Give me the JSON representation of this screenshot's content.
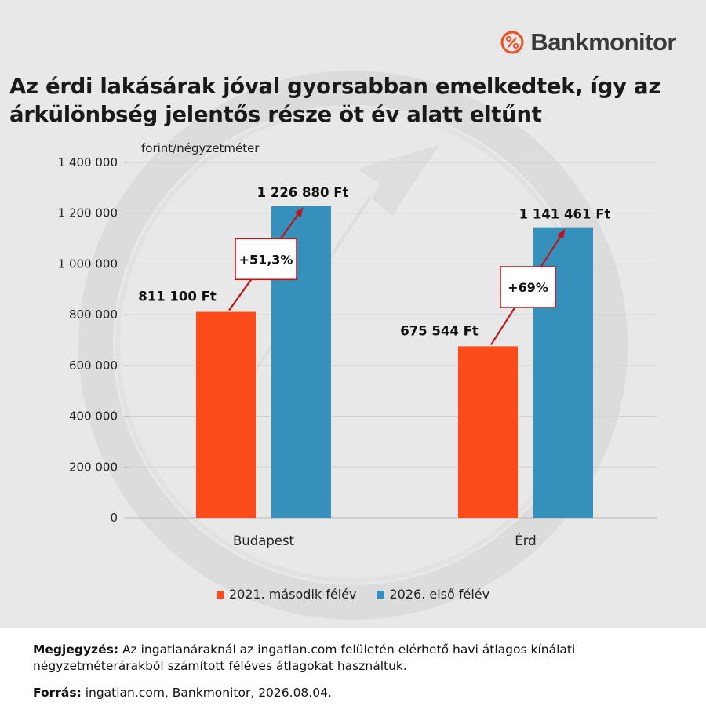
{
  "brand": {
    "logo_text": "Bankmonitor",
    "accent": "#f04e23"
  },
  "title": "Az érdi lakásárak jóval gyorsabban emelkedtek, így az árkülönbség jelentős része öt év alatt eltűnt",
  "chart_data": {
    "type": "bar",
    "ylabel": "forint/négyzetméter",
    "categories": [
      "Budapest",
      "Érd"
    ],
    "ylim": [
      0,
      1400000
    ],
    "yticks": [
      0,
      200000,
      400000,
      600000,
      800000,
      1000000,
      1200000,
      1400000
    ],
    "ytick_labels": [
      "0",
      "200 000",
      "400 000",
      "600 000",
      "800 000",
      "1 000 000",
      "1 200 000",
      "1 400 000"
    ],
    "grid": true,
    "legend_position": "bottom",
    "series": [
      {
        "name": "2021. második félév",
        "color": "#fc4a1a",
        "values": [
          811100,
          675544
        ],
        "labels": [
          "811 100 Ft",
          "675 544 Ft"
        ]
      },
      {
        "name": "2026. első félév",
        "color": "#3590bb",
        "values": [
          1226880,
          1141461
        ],
        "labels": [
          "1 226 880 Ft",
          "1 141 461 Ft"
        ]
      }
    ],
    "annotations": [
      "+51,3%",
      "+69%"
    ],
    "annotation_color": "#c0141b"
  },
  "footer": {
    "note_label": "Megjegyzés:",
    "note_text": " Az ingatlanáraknál az ingatlan.com felületén elérhető havi átlagos kínálati négyzetméterárakból számított féléves átlagokat használtuk.",
    "source_label": "Forrás:",
    "source_text": " ingatlan.com, Bankmonitor, 2026.08.04."
  }
}
